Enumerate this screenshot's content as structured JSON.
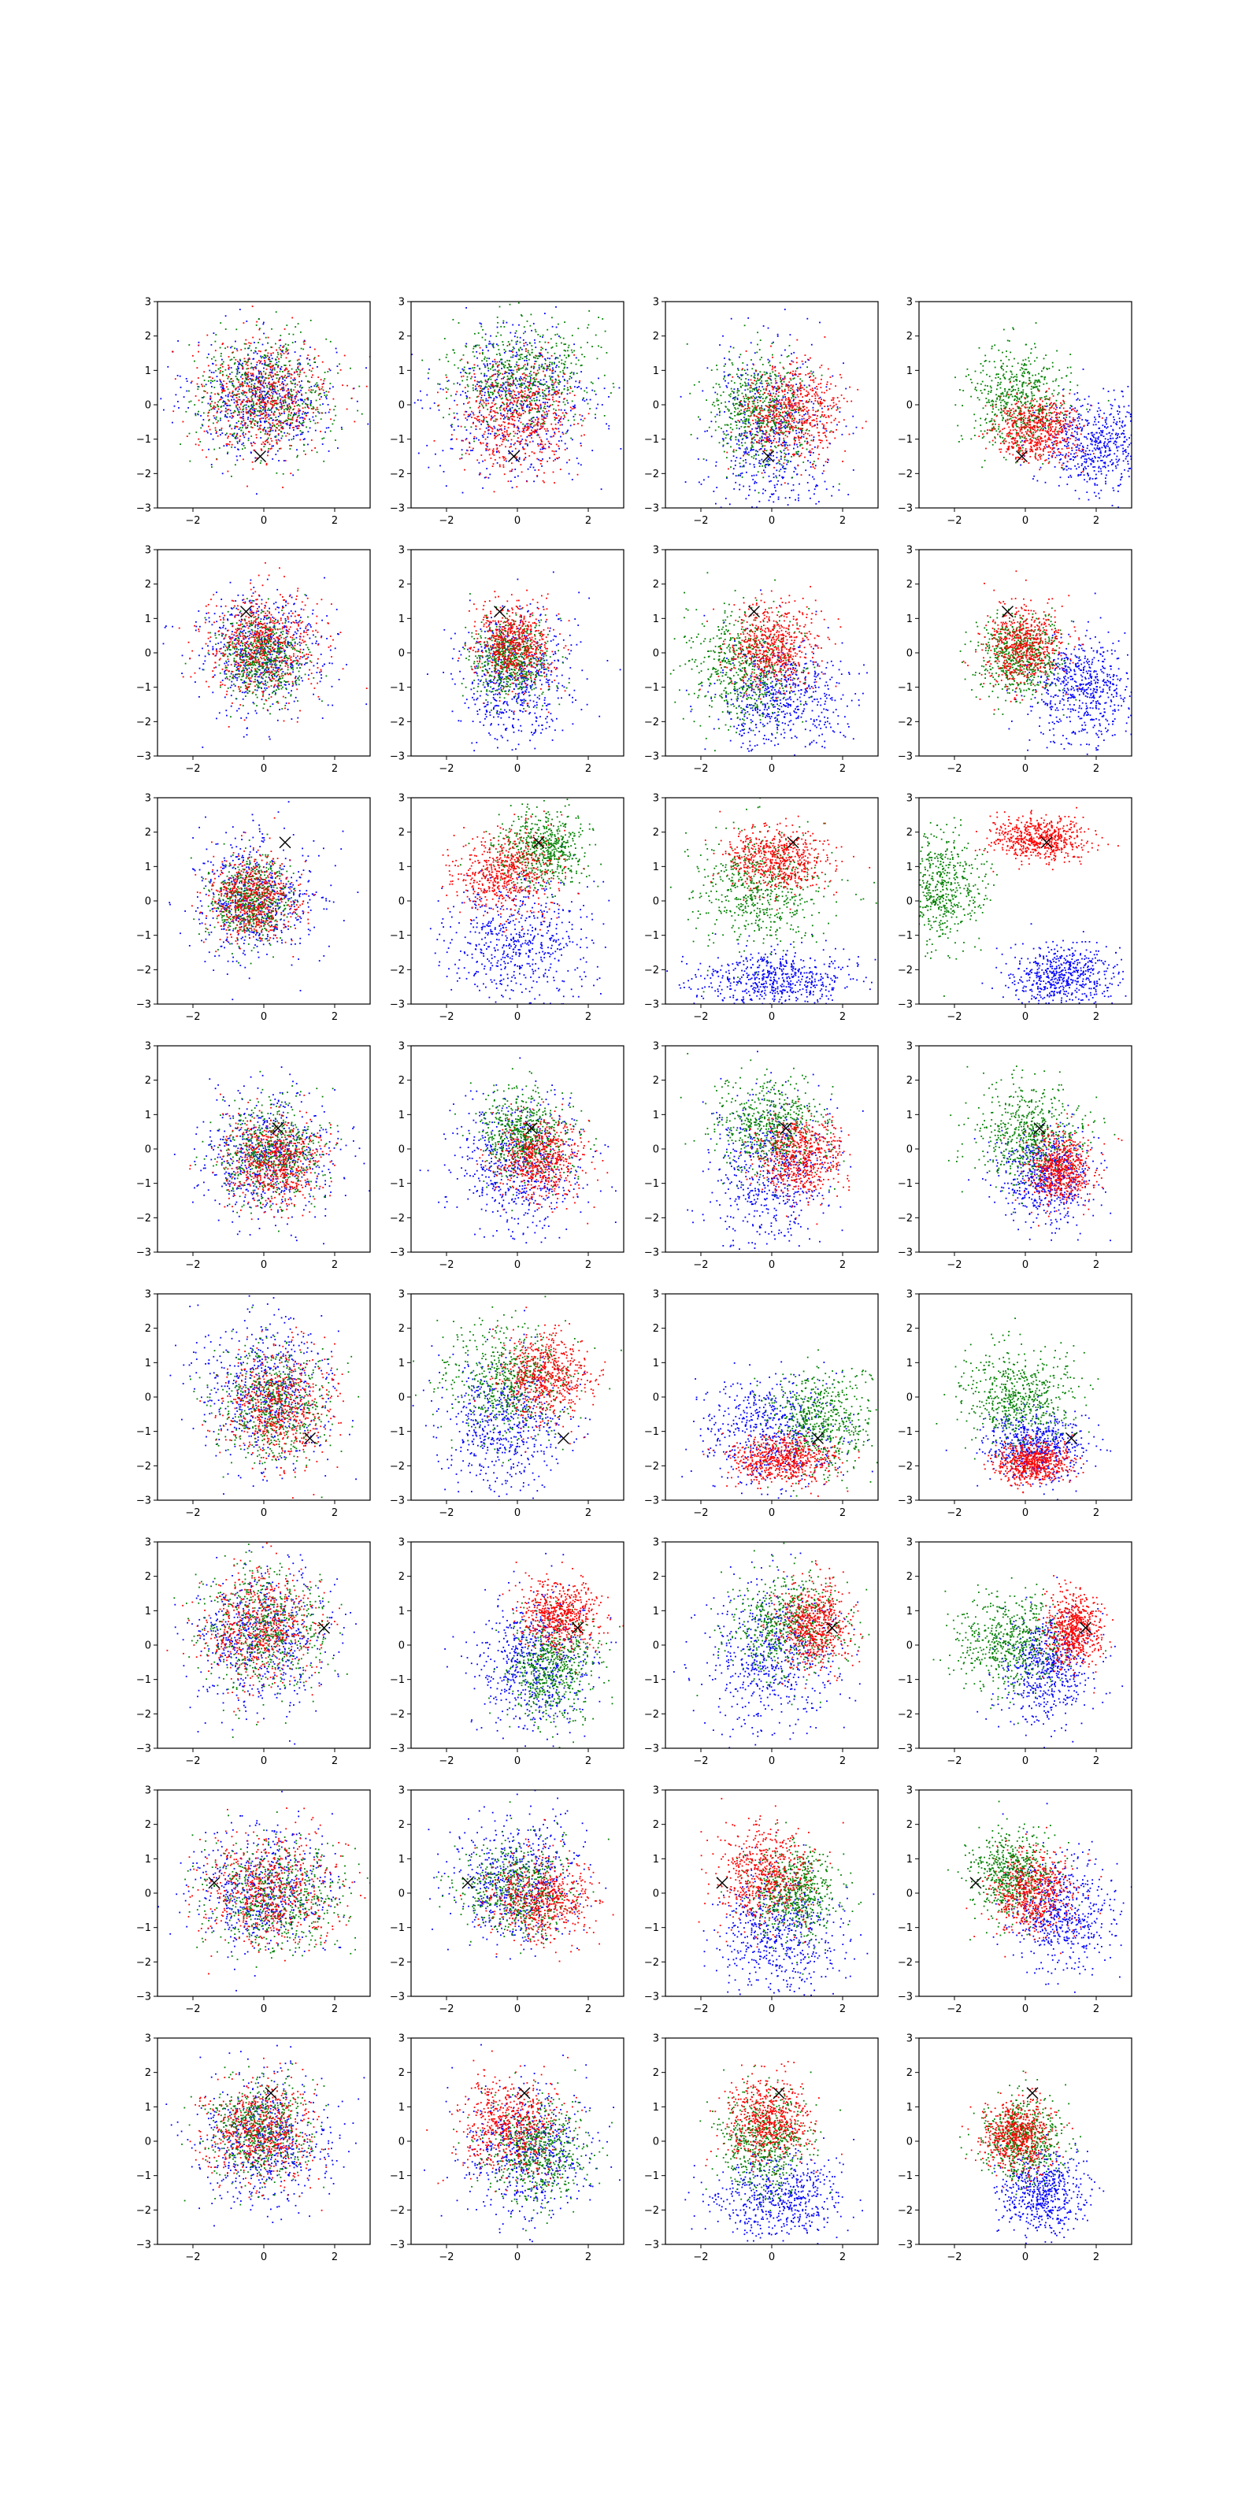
{
  "figure": {
    "rows": 8,
    "cols": 4,
    "background": "#ffffff"
  },
  "axes": {
    "xlim": [
      -3,
      3
    ],
    "ylim": [
      -3,
      3
    ],
    "xticks": [
      -2,
      0,
      2
    ],
    "yticks": [
      -3,
      -2,
      -1,
      0,
      1,
      2,
      3
    ],
    "xtick_labels": [
      "−2",
      "0",
      "2"
    ],
    "ytick_labels": [
      "−3",
      "−2",
      "−1",
      "0",
      "1",
      "2",
      "3"
    ]
  },
  "colors": {
    "blue": "#0000ff",
    "green": "#008000",
    "red": "#ff0000",
    "marker": "#000000",
    "axes": "#000000"
  },
  "chart_data": {
    "type": "scatter",
    "title": "",
    "xlabel": "",
    "ylabel": "",
    "grid": false,
    "legend": false,
    "points_per_cluster": 600,
    "marker_symbol": "x",
    "rows": [
      {
        "marker": [
          -0.1,
          -1.5
        ],
        "panels": [
          [
            {
              "c": "blue",
              "x": 0,
              "y": 0.2,
              "sx": 1.0,
              "sy": 0.85
            },
            {
              "c": "green",
              "x": 0,
              "y": 0.3,
              "sx": 0.95,
              "sy": 0.85
            },
            {
              "c": "red",
              "x": 0,
              "y": 0.2,
              "sx": 0.95,
              "sy": 0.85
            }
          ],
          [
            {
              "c": "blue",
              "x": 0,
              "y": 0,
              "sx": 1.1,
              "sy": 1.1
            },
            {
              "c": "green",
              "x": 0.1,
              "y": 0.9,
              "sx": 1.0,
              "sy": 0.8
            },
            {
              "c": "red",
              "x": 0,
              "y": -0.3,
              "sx": 0.8,
              "sy": 0.8
            }
          ],
          [
            {
              "c": "blue",
              "x": 0,
              "y": -0.8,
              "sx": 0.9,
              "sy": 1.2
            },
            {
              "c": "green",
              "x": -0.3,
              "y": -0.2,
              "sx": 0.7,
              "sy": 0.8
            },
            {
              "c": "red",
              "x": 0.6,
              "y": -0.2,
              "sx": 0.7,
              "sy": 0.7
            }
          ],
          [
            {
              "c": "blue",
              "x": 2.0,
              "y": -1.2,
              "sx": 0.8,
              "sy": 0.7
            },
            {
              "c": "green",
              "x": -0.2,
              "y": 0.1,
              "sx": 0.7,
              "sy": 0.7
            },
            {
              "c": "red",
              "x": 0.3,
              "y": -0.7,
              "sx": 0.6,
              "sy": 0.45
            }
          ]
        ]
      },
      {
        "marker": [
          -0.5,
          1.2
        ],
        "panels": [
          [
            {
              "c": "blue",
              "x": -0.1,
              "y": 0,
              "sx": 0.9,
              "sy": 0.85
            },
            {
              "c": "green",
              "x": -0.1,
              "y": -0.1,
              "sx": 0.6,
              "sy": 0.6
            },
            {
              "c": "red",
              "x": -0.1,
              "y": 0.2,
              "sx": 0.8,
              "sy": 0.8
            }
          ],
          [
            {
              "c": "blue",
              "x": -0.1,
              "y": -0.7,
              "sx": 0.8,
              "sy": 1.0
            },
            {
              "c": "green",
              "x": -0.2,
              "y": -0.2,
              "sx": 0.55,
              "sy": 0.55
            },
            {
              "c": "red",
              "x": -0.1,
              "y": 0.2,
              "sx": 0.55,
              "sy": 0.6
            }
          ],
          [
            {
              "c": "blue",
              "x": 0.3,
              "y": -1.3,
              "sx": 0.9,
              "sy": 0.8
            },
            {
              "c": "green",
              "x": -0.8,
              "y": -0.4,
              "sx": 0.8,
              "sy": 0.8
            },
            {
              "c": "red",
              "x": 0,
              "y": 0.2,
              "sx": 0.6,
              "sy": 0.6
            }
          ],
          [
            {
              "c": "blue",
              "x": 1.6,
              "y": -1.1,
              "sx": 0.7,
              "sy": 0.75
            },
            {
              "c": "green",
              "x": -0.2,
              "y": -0.1,
              "sx": 0.6,
              "sy": 0.6
            },
            {
              "c": "red",
              "x": -0.1,
              "y": 0.2,
              "sx": 0.55,
              "sy": 0.6
            }
          ]
        ]
      },
      {
        "marker": [
          0.6,
          1.7
        ],
        "panels": [
          [
            {
              "c": "blue",
              "x": -0.2,
              "y": 0,
              "sx": 0.85,
              "sy": 0.9
            },
            {
              "c": "green",
              "x": -0.4,
              "y": 0,
              "sx": 0.55,
              "sy": 0.6
            },
            {
              "c": "red",
              "x": -0.3,
              "y": 0.1,
              "sx": 0.6,
              "sy": 0.6
            }
          ],
          [
            {
              "c": "blue",
              "x": 0,
              "y": -1.3,
              "sx": 1.0,
              "sy": 0.9
            },
            {
              "c": "green",
              "x": 0.7,
              "y": 1.5,
              "sx": 0.65,
              "sy": 0.55
            },
            {
              "c": "red",
              "x": -0.3,
              "y": 0.8,
              "sx": 0.7,
              "sy": 0.6
            }
          ],
          [
            {
              "c": "blue",
              "x": 0.2,
              "y": -2.3,
              "sx": 1.1,
              "sy": 0.45
            },
            {
              "c": "green",
              "x": -0.4,
              "y": 0.3,
              "sx": 0.9,
              "sy": 0.8
            },
            {
              "c": "red",
              "x": 0.2,
              "y": 1.2,
              "sx": 0.7,
              "sy": 0.45
            }
          ],
          [
            {
              "c": "blue",
              "x": 1.1,
              "y": -2.2,
              "sx": 0.75,
              "sy": 0.45
            },
            {
              "c": "green",
              "x": -2.5,
              "y": 0.4,
              "sx": 0.6,
              "sy": 0.8
            },
            {
              "c": "red",
              "x": 0.4,
              "y": 1.8,
              "sx": 0.7,
              "sy": 0.3
            }
          ]
        ]
      },
      {
        "marker": [
          0.4,
          0.6
        ],
        "panels": [
          [
            {
              "c": "blue",
              "x": 0.1,
              "y": -0.2,
              "sx": 0.95,
              "sy": 0.95
            },
            {
              "c": "green",
              "x": 0.2,
              "y": -0.1,
              "sx": 0.7,
              "sy": 0.7
            },
            {
              "c": "red",
              "x": 0.3,
              "y": -0.4,
              "sx": 0.7,
              "sy": 0.65
            }
          ],
          [
            {
              "c": "blue",
              "x": 0,
              "y": -0.5,
              "sx": 0.9,
              "sy": 1.0
            },
            {
              "c": "green",
              "x": 0.2,
              "y": 0.4,
              "sx": 0.65,
              "sy": 0.65
            },
            {
              "c": "red",
              "x": 0.6,
              "y": -0.3,
              "sx": 0.6,
              "sy": 0.6
            }
          ],
          [
            {
              "c": "blue",
              "x": 0,
              "y": -0.6,
              "sx": 0.9,
              "sy": 1.1
            },
            {
              "c": "green",
              "x": 0,
              "y": 0.7,
              "sx": 0.8,
              "sy": 0.7
            },
            {
              "c": "red",
              "x": 0.8,
              "y": -0.2,
              "sx": 0.6,
              "sy": 0.6
            }
          ],
          [
            {
              "c": "blue",
              "x": 0.6,
              "y": -0.8,
              "sx": 0.7,
              "sy": 0.7
            },
            {
              "c": "green",
              "x": 0.1,
              "y": 0.4,
              "sx": 0.75,
              "sy": 0.7
            },
            {
              "c": "red",
              "x": 1.0,
              "y": -0.6,
              "sx": 0.45,
              "sy": 0.5
            }
          ]
        ]
      },
      {
        "marker": [
          1.3,
          -1.2
        ],
        "panels": [
          [
            {
              "c": "blue",
              "x": 0,
              "y": 0.2,
              "sx": 0.95,
              "sy": 1.0
            },
            {
              "c": "green",
              "x": 0.2,
              "y": -0.2,
              "sx": 0.8,
              "sy": 0.8
            },
            {
              "c": "red",
              "x": 0.4,
              "y": -0.3,
              "sx": 0.75,
              "sy": 0.8
            }
          ],
          [
            {
              "c": "blue",
              "x": -0.4,
              "y": -0.8,
              "sx": 0.9,
              "sy": 1.0
            },
            {
              "c": "green",
              "x": -0.2,
              "y": 0.5,
              "sx": 0.9,
              "sy": 0.8
            },
            {
              "c": "red",
              "x": 0.8,
              "y": 0.6,
              "sx": 0.6,
              "sy": 0.6
            }
          ],
          [
            {
              "c": "blue",
              "x": 0,
              "y": -1.1,
              "sx": 1.0,
              "sy": 0.8
            },
            {
              "c": "green",
              "x": 1.4,
              "y": -0.7,
              "sx": 0.7,
              "sy": 0.7
            },
            {
              "c": "red",
              "x": 0.3,
              "y": -1.8,
              "sx": 0.7,
              "sy": 0.35
            }
          ],
          [
            {
              "c": "blue",
              "x": 0.3,
              "y": -1.4,
              "sx": 0.7,
              "sy": 0.5
            },
            {
              "c": "green",
              "x": -0.2,
              "y": 0,
              "sx": 0.8,
              "sy": 0.7
            },
            {
              "c": "red",
              "x": 0.2,
              "y": -1.9,
              "sx": 0.5,
              "sy": 0.3
            }
          ]
        ]
      },
      {
        "marker": [
          1.7,
          0.5
        ],
        "panels": [
          [
            {
              "c": "blue",
              "x": -0.1,
              "y": 0.2,
              "sx": 1.0,
              "sy": 1.0
            },
            {
              "c": "green",
              "x": 0,
              "y": 0.4,
              "sx": 0.9,
              "sy": 0.9
            },
            {
              "c": "red",
              "x": -0.1,
              "y": 0.5,
              "sx": 0.8,
              "sy": 0.8
            }
          ],
          [
            {
              "c": "blue",
              "x": 0.4,
              "y": -0.6,
              "sx": 0.8,
              "sy": 1.0
            },
            {
              "c": "green",
              "x": 1.0,
              "y": -0.7,
              "sx": 0.6,
              "sy": 0.8
            },
            {
              "c": "red",
              "x": 1.2,
              "y": 0.9,
              "sx": 0.55,
              "sy": 0.5
            }
          ],
          [
            {
              "c": "blue",
              "x": 0,
              "y": -0.4,
              "sx": 0.9,
              "sy": 1.1
            },
            {
              "c": "green",
              "x": 0.5,
              "y": 0.6,
              "sx": 0.8,
              "sy": 0.7
            },
            {
              "c": "red",
              "x": 1.2,
              "y": 0.6,
              "sx": 0.5,
              "sy": 0.6
            }
          ],
          [
            {
              "c": "blue",
              "x": 0.6,
              "y": -0.6,
              "sx": 0.65,
              "sy": 0.8
            },
            {
              "c": "green",
              "x": -0.4,
              "y": 0.1,
              "sx": 0.8,
              "sy": 0.7
            },
            {
              "c": "red",
              "x": 1.4,
              "y": 0.5,
              "sx": 0.4,
              "sy": 0.55
            }
          ]
        ]
      },
      {
        "marker": [
          -1.4,
          0.3
        ],
        "panels": [
          [
            {
              "c": "blue",
              "x": 0,
              "y": 0.1,
              "sx": 1.0,
              "sy": 0.9
            },
            {
              "c": "green",
              "x": 0.4,
              "y": 0,
              "sx": 0.9,
              "sy": 0.8
            },
            {
              "c": "red",
              "x": 0.2,
              "y": 0.1,
              "sx": 0.9,
              "sy": 0.8
            }
          ],
          [
            {
              "c": "blue",
              "x": 0,
              "y": 0.3,
              "sx": 0.9,
              "sy": 0.9
            },
            {
              "c": "green",
              "x": 0,
              "y": 0.1,
              "sx": 0.75,
              "sy": 0.7
            },
            {
              "c": "red",
              "x": 0.7,
              "y": -0.2,
              "sx": 0.7,
              "sy": 0.6
            }
          ],
          [
            {
              "c": "blue",
              "x": 0.2,
              "y": -1.2,
              "sx": 0.9,
              "sy": 1.0
            },
            {
              "c": "green",
              "x": 0.6,
              "y": 0,
              "sx": 0.6,
              "sy": 0.65
            },
            {
              "c": "red",
              "x": -0.2,
              "y": 0.5,
              "sx": 0.65,
              "sy": 0.7
            }
          ],
          [
            {
              "c": "blue",
              "x": 1.0,
              "y": -0.6,
              "sx": 0.7,
              "sy": 0.8
            },
            {
              "c": "green",
              "x": -0.4,
              "y": 0.6,
              "sx": 0.6,
              "sy": 0.6
            },
            {
              "c": "red",
              "x": 0.2,
              "y": 0,
              "sx": 0.55,
              "sy": 0.6
            }
          ]
        ]
      },
      {
        "marker": [
          0.2,
          1.4
        ],
        "panels": [
          [
            {
              "c": "blue",
              "x": 0,
              "y": 0,
              "sx": 0.95,
              "sy": 0.95
            },
            {
              "c": "green",
              "x": -0.2,
              "y": 0.3,
              "sx": 0.7,
              "sy": 0.75
            },
            {
              "c": "red",
              "x": -0.1,
              "y": 0.3,
              "sx": 0.75,
              "sy": 0.75
            }
          ],
          [
            {
              "c": "blue",
              "x": 0.3,
              "y": -0.3,
              "sx": 0.9,
              "sy": 1.0
            },
            {
              "c": "green",
              "x": 0.5,
              "y": -0.3,
              "sx": 0.7,
              "sy": 0.7
            },
            {
              "c": "red",
              "x": -0.2,
              "y": 0.5,
              "sx": 0.7,
              "sy": 0.7
            }
          ],
          [
            {
              "c": "blue",
              "x": 0.2,
              "y": -1.7,
              "sx": 0.9,
              "sy": 0.7
            },
            {
              "c": "green",
              "x": -0.2,
              "y": 0,
              "sx": 0.6,
              "sy": 0.7
            },
            {
              "c": "red",
              "x": -0.1,
              "y": 0.6,
              "sx": 0.6,
              "sy": 0.6
            }
          ],
          [
            {
              "c": "blue",
              "x": 0.5,
              "y": -1.5,
              "sx": 0.6,
              "sy": 0.6
            },
            {
              "c": "green",
              "x": -0.1,
              "y": 0.1,
              "sx": 0.55,
              "sy": 0.6
            },
            {
              "c": "red",
              "x": -0.2,
              "y": 0.2,
              "sx": 0.5,
              "sy": 0.55
            }
          ]
        ]
      }
    ]
  }
}
